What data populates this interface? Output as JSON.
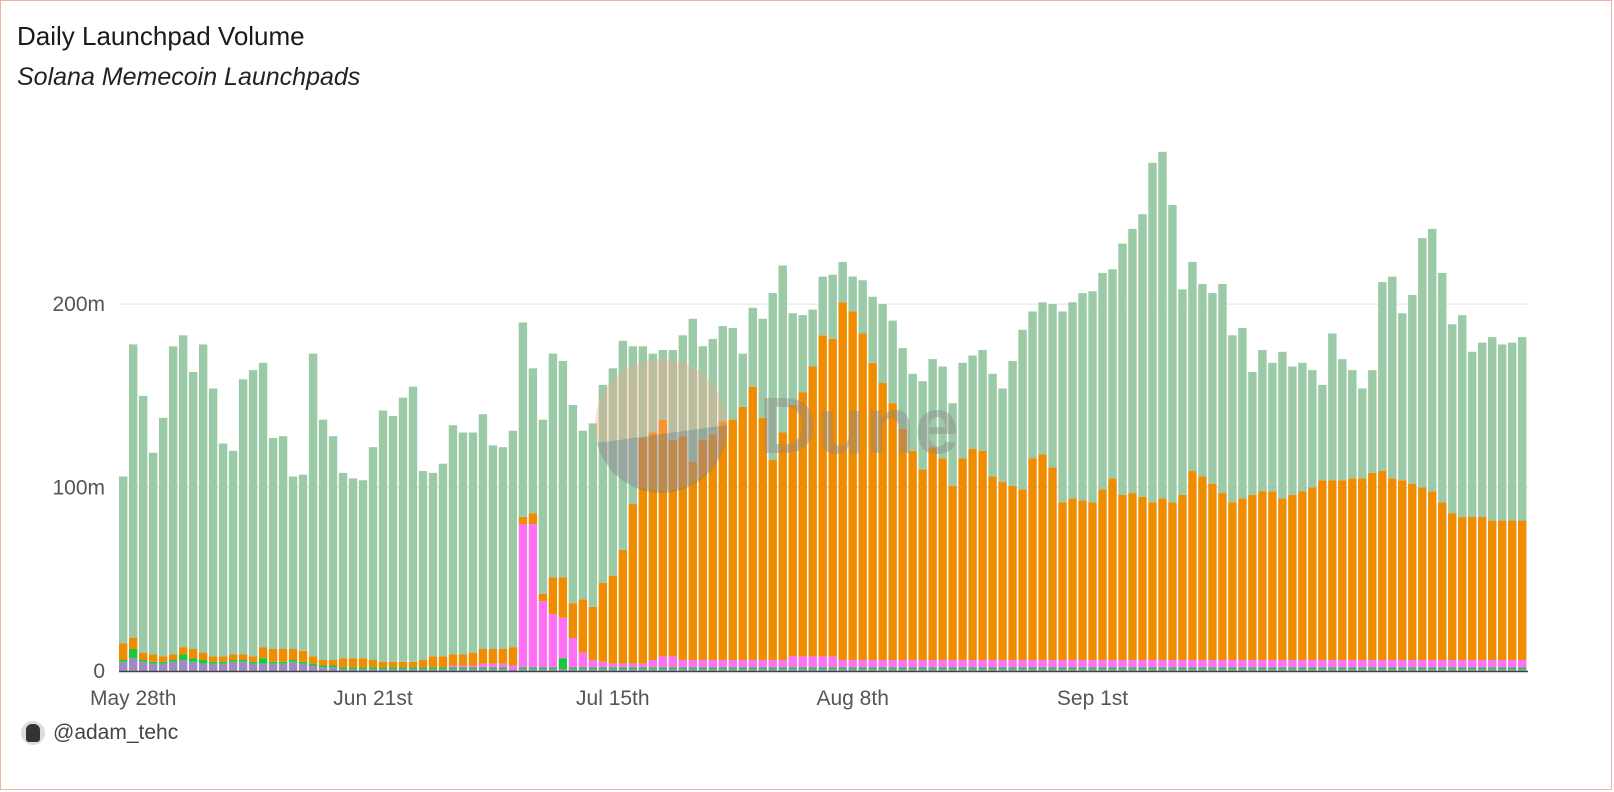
{
  "header": {
    "title": "Daily Launchpad Volume",
    "subtitle": "Solana Memecoin Launchpads"
  },
  "footer": {
    "handle": "@adam_tehc"
  },
  "watermark": {
    "text": "Dune"
  },
  "chart_data": {
    "type": "bar",
    "stacked": true,
    "x_tick_labels": [
      "May 28th",
      "Jun 21st",
      "Jul 15th",
      "Aug 8th",
      "Sep 1st"
    ],
    "y_tick_labels": [
      "0",
      "100m",
      "200m"
    ],
    "ylim": [
      0,
      290
    ],
    "grid": "horizontal",
    "colors": {
      "black": "#1a1a1a",
      "purple": "#9d8bc2",
      "green": "#18c93a",
      "magenta": "#ff70f5",
      "pink": "#f5a0c6",
      "orange": "#f08c00",
      "lightgreen": "#9bcaa6"
    },
    "series": [
      {
        "color": "black",
        "values": [
          0,
          0,
          0,
          0,
          0,
          0,
          0,
          0,
          0,
          0,
          0,
          0,
          0,
          0,
          0,
          0,
          0,
          0,
          0,
          0,
          0,
          0,
          0,
          0,
          0,
          0,
          0,
          0,
          0,
          0,
          0,
          0,
          0,
          0,
          0,
          0,
          0,
          0,
          0,
          0,
          0,
          0,
          0,
          0,
          0,
          0,
          0,
          0,
          0,
          0,
          0,
          0,
          0,
          0,
          0,
          0,
          0,
          0,
          0,
          0,
          0,
          0,
          0,
          0,
          0,
          0,
          0,
          0,
          0,
          0,
          0,
          0,
          0,
          0,
          0,
          0,
          0,
          0,
          0,
          0,
          0,
          0,
          0,
          0,
          0,
          0,
          0,
          0,
          0,
          0,
          0,
          0,
          0,
          0,
          0,
          0,
          0,
          0,
          0,
          0,
          0,
          0,
          0,
          0,
          0,
          0,
          0,
          0,
          0,
          0,
          0,
          0,
          0,
          0,
          0,
          0,
          0,
          0,
          0,
          0,
          0,
          0,
          0,
          0,
          0,
          0,
          0,
          0,
          0,
          0,
          0,
          0,
          0,
          0,
          0,
          0,
          0,
          0,
          0,
          0,
          0
        ]
      },
      {
        "color": "purple",
        "values": [
          5,
          7,
          5,
          4,
          4,
          5,
          6,
          5,
          4,
          4,
          4,
          5,
          5,
          4,
          4,
          4,
          4,
          5,
          4,
          3,
          2,
          2,
          1,
          1,
          1,
          1,
          1,
          1,
          1,
          1,
          1,
          1,
          1,
          1,
          1,
          1,
          1,
          1,
          1,
          1,
          1,
          1,
          1,
          1,
          1,
          1,
          1,
          1,
          1,
          1,
          1,
          1,
          1,
          1,
          1,
          1,
          1,
          1,
          1,
          1,
          1,
          1,
          1,
          1,
          1,
          1,
          1,
          1,
          1,
          1,
          1,
          1,
          1,
          1,
          1,
          1,
          1,
          1,
          1,
          1,
          1,
          1,
          1,
          1,
          1,
          1,
          1,
          1,
          1,
          1,
          1,
          1,
          1,
          1,
          1,
          1,
          1,
          1,
          1,
          1,
          1,
          1,
          1,
          1,
          1,
          1,
          1,
          1,
          1,
          1,
          1,
          1,
          1,
          1,
          1,
          1,
          1,
          1,
          1,
          1,
          1,
          1,
          1,
          1,
          1,
          1,
          1,
          1,
          1,
          1,
          1,
          1,
          1,
          1,
          1,
          1,
          1,
          1,
          1,
          1,
          1,
          1
        ]
      },
      {
        "color": "green",
        "values": [
          1,
          5,
          1,
          1,
          1,
          1,
          3,
          2,
          2,
          1,
          1,
          1,
          1,
          1,
          3,
          1,
          1,
          1,
          1,
          1,
          1,
          1,
          1,
          1,
          1,
          1,
          1,
          1,
          1,
          1,
          1,
          1,
          1,
          1,
          1,
          1,
          1,
          1,
          1,
          0,
          1,
          1,
          1,
          1,
          6,
          1,
          1,
          1,
          1,
          1,
          1,
          1,
          1,
          1,
          1,
          1,
          1,
          1,
          1,
          1,
          1,
          1,
          1,
          1,
          1,
          1,
          1,
          1,
          1,
          1,
          1,
          1,
          1,
          1,
          1,
          1,
          1,
          1,
          1,
          1,
          1,
          1,
          1,
          1,
          1,
          1,
          1,
          1,
          1,
          1,
          1,
          1,
          1,
          1,
          1,
          1,
          1,
          1,
          1,
          1,
          1,
          1,
          1,
          1,
          1,
          1,
          1,
          1,
          1,
          1,
          1,
          1,
          1,
          1,
          1,
          1,
          1,
          1,
          1,
          1,
          1,
          1,
          1,
          1,
          1,
          1,
          1,
          1,
          1,
          1,
          1,
          1,
          1,
          1,
          1,
          1,
          1,
          1,
          1,
          1,
          1,
          1
        ]
      },
      {
        "color": "magenta",
        "values": [
          0,
          0,
          0,
          0,
          0,
          0,
          0,
          0,
          0,
          0,
          0,
          0,
          0,
          0,
          0,
          0,
          0,
          0,
          0,
          0,
          0,
          0,
          0,
          0,
          0,
          0,
          0,
          0,
          0,
          0,
          0,
          0,
          0,
          1,
          1,
          1,
          2,
          2,
          2,
          2,
          78,
          78,
          36,
          29,
          22,
          16,
          8,
          4,
          3,
          2,
          2,
          2,
          2,
          4,
          6,
          6,
          4,
          4,
          4,
          4,
          4,
          4,
          4,
          4,
          4,
          4,
          4,
          6,
          6,
          6,
          6,
          6,
          4,
          4,
          4,
          4,
          4,
          4,
          4,
          4,
          4,
          4,
          4,
          4,
          4,
          4,
          4,
          4,
          4,
          4,
          4,
          4,
          4,
          4,
          4,
          4,
          4,
          4,
          4,
          4,
          4,
          4,
          4,
          4,
          4,
          4,
          4,
          4,
          4,
          4,
          4,
          4,
          4,
          4,
          4,
          4,
          4,
          4,
          4,
          4,
          4,
          4,
          4,
          4,
          4,
          4,
          4,
          4,
          4,
          4,
          4,
          4,
          4,
          4,
          4,
          4,
          4,
          4,
          4,
          4,
          4,
          4
        ]
      },
      {
        "color": "pink",
        "values": [
          0,
          0,
          0,
          0,
          0,
          0,
          0,
          0,
          0,
          0,
          0,
          0,
          0,
          0,
          0,
          0,
          0,
          0,
          0,
          0,
          0,
          0,
          0,
          0,
          0,
          0,
          0,
          0,
          0,
          0,
          0,
          0,
          0,
          0,
          0,
          0,
          0,
          0,
          0,
          0,
          0,
          0,
          0,
          0,
          0,
          0,
          0,
          0,
          0,
          0,
          0,
          0,
          0,
          0,
          0,
          0,
          0,
          0,
          0,
          0,
          0,
          0,
          0,
          0,
          0,
          0,
          0,
          0,
          0,
          0,
          0,
          0,
          0,
          0,
          0,
          0,
          0,
          0,
          0,
          0,
          0,
          0,
          0,
          0,
          0,
          0,
          0,
          0,
          0,
          0,
          0,
          0,
          0,
          0,
          0,
          0,
          0,
          0,
          0,
          0,
          0,
          0,
          0,
          0,
          0,
          0,
          0,
          0,
          0,
          0,
          0,
          0,
          0,
          0,
          0,
          0,
          0,
          0,
          0,
          0,
          0,
          0,
          0,
          0,
          0,
          0,
          0,
          0,
          0,
          0,
          0,
          0,
          0,
          0,
          0,
          0,
          0,
          0,
          0,
          0,
          0,
          0
        ]
      },
      {
        "color": "orange",
        "values": [
          9,
          6,
          4,
          4,
          3,
          3,
          4,
          5,
          4,
          3,
          3,
          3,
          3,
          3,
          6,
          7,
          7,
          6,
          6,
          4,
          3,
          3,
          5,
          5,
          5,
          4,
          3,
          3,
          3,
          3,
          4,
          6,
          6,
          6,
          6,
          7,
          8,
          8,
          8,
          10,
          4,
          6,
          4,
          20,
          22,
          19,
          29,
          29,
          43,
          48,
          62,
          87,
          123,
          124,
          129,
          118,
          122,
          108,
          120,
          123,
          130,
          131,
          138,
          149,
          132,
          109,
          124,
          137,
          144,
          158,
          175,
          173,
          195,
          190,
          178,
          162,
          151,
          140,
          126,
          114,
          104,
          116,
          110,
          95,
          110,
          115,
          114,
          100,
          97,
          95,
          93,
          110,
          112,
          105,
          86,
          88,
          87,
          86,
          93,
          99,
          90,
          91,
          89,
          86,
          88,
          86,
          90,
          103,
          100,
          96,
          91,
          86,
          88,
          90,
          92,
          92,
          88,
          90,
          92,
          94,
          98,
          98,
          98,
          99,
          99,
          102,
          103,
          99,
          98,
          96,
          94,
          92,
          86,
          80,
          78,
          78,
          78,
          76,
          76,
          76,
          76,
          76
        ]
      },
      {
        "color": "lightgreen",
        "values": [
          91,
          160,
          140,
          110,
          130,
          168,
          170,
          151,
          168,
          146,
          116,
          111,
          150,
          156,
          155,
          115,
          116,
          94,
          96,
          165,
          131,
          122,
          101,
          98,
          97,
          116,
          137,
          134,
          144,
          150,
          103,
          100,
          105,
          125,
          121,
          120,
          128,
          111,
          110,
          118,
          106,
          79,
          95,
          122,
          118,
          108,
          92,
          100,
          108,
          113,
          114,
          86,
          50,
          43,
          38,
          49,
          55,
          78,
          51,
          52,
          52,
          50,
          29,
          43,
          54,
          91,
          91,
          50,
          42,
          31,
          32,
          35,
          22,
          19,
          29,
          36,
          43,
          45,
          44,
          42,
          48,
          48,
          50,
          45,
          52,
          51,
          55,
          56,
          51,
          68,
          87,
          80,
          83,
          89,
          104,
          107,
          113,
          115,
          118,
          114,
          137,
          144,
          154,
          185,
          189,
          162,
          112,
          114,
          105,
          104,
          114,
          91,
          93,
          67,
          77,
          70,
          80,
          70,
          70,
          64,
          52,
          80,
          66,
          59,
          49,
          56,
          103,
          110,
          91,
          103,
          136,
          143,
          125,
          103,
          110,
          90,
          95,
          100,
          96,
          97,
          100,
          100,
          100
        ]
      }
    ]
  }
}
